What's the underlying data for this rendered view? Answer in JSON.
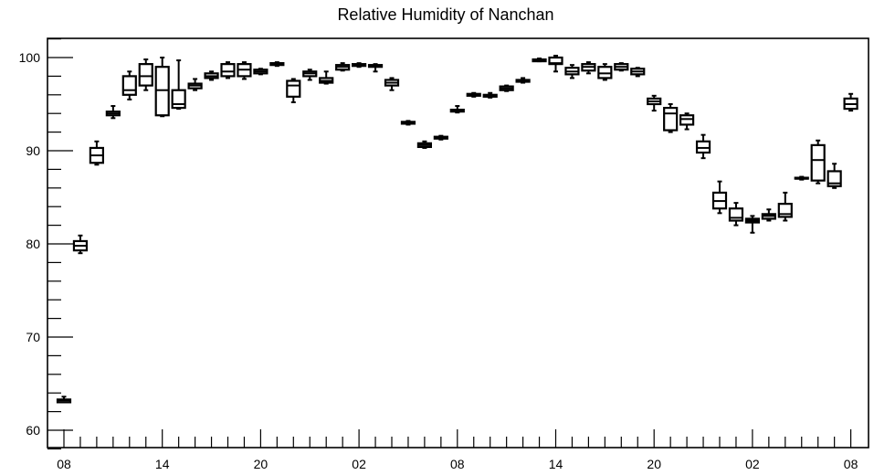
{
  "chart_data": {
    "type": "box",
    "title": "Relative Humidity of Nanchan",
    "xlabel": "",
    "ylabel": "",
    "ylim": [
      58,
      102
    ],
    "y_ticks": [
      60,
      70,
      80,
      90,
      100
    ],
    "y_minor_step": 2,
    "grid": false,
    "x_tick_labels": [
      "08",
      "14",
      "20",
      "02",
      "08",
      "14",
      "20",
      "02",
      "08"
    ],
    "x_tick_label_positions": [
      0,
      6,
      12,
      18,
      24,
      30,
      36,
      42,
      48
    ],
    "series": [
      {
        "boxes": [
          {
            "x": 0,
            "low": 63.0,
            "q1": 63.0,
            "median": 63.2,
            "q3": 63.3,
            "high": 63.6
          },
          {
            "x": 1,
            "low": 79.0,
            "q1": 79.3,
            "median": 79.8,
            "q3": 80.3,
            "high": 80.9
          },
          {
            "x": 2,
            "low": 88.5,
            "q1": 88.7,
            "median": 89.5,
            "q3": 90.3,
            "high": 91.0
          },
          {
            "x": 3,
            "low": 93.5,
            "q1": 93.8,
            "median": 94.0,
            "q3": 94.2,
            "high": 94.8
          },
          {
            "x": 4,
            "low": 95.5,
            "q1": 96.0,
            "median": 96.5,
            "q3": 98.0,
            "high": 98.5
          },
          {
            "x": 5,
            "low": 96.5,
            "q1": 97.0,
            "median": 98.0,
            "q3": 99.3,
            "high": 99.8
          },
          {
            "x": 6,
            "low": 93.7,
            "q1": 93.8,
            "median": 96.5,
            "q3": 99.0,
            "high": 100.0
          },
          {
            "x": 7,
            "low": 94.5,
            "q1": 94.6,
            "median": 95.0,
            "q3": 96.5,
            "high": 99.7
          },
          {
            "x": 8,
            "low": 96.5,
            "q1": 96.7,
            "median": 97.0,
            "q3": 97.2,
            "high": 97.7
          },
          {
            "x": 9,
            "low": 97.6,
            "q1": 97.8,
            "median": 98.0,
            "q3": 98.3,
            "high": 98.5
          },
          {
            "x": 10,
            "low": 97.8,
            "q1": 98.0,
            "median": 98.5,
            "q3": 99.3,
            "high": 99.5
          },
          {
            "x": 11,
            "low": 97.7,
            "q1": 98.0,
            "median": 98.7,
            "q3": 99.3,
            "high": 99.5
          },
          {
            "x": 12,
            "low": 98.2,
            "q1": 98.3,
            "median": 98.5,
            "q3": 98.7,
            "high": 98.8
          },
          {
            "x": 13,
            "low": 99.1,
            "q1": 99.2,
            "median": 99.3,
            "q3": 99.4,
            "high": 99.5
          },
          {
            "x": 14,
            "low": 95.2,
            "q1": 95.8,
            "median": 97.0,
            "q3": 97.5,
            "high": 97.7
          },
          {
            "x": 15,
            "low": 97.6,
            "q1": 98.0,
            "median": 98.3,
            "q3": 98.5,
            "high": 98.7
          },
          {
            "x": 16,
            "low": 97.2,
            "q1": 97.3,
            "median": 97.5,
            "q3": 97.8,
            "high": 98.5
          },
          {
            "x": 17,
            "low": 98.6,
            "q1": 98.7,
            "median": 99.0,
            "q3": 99.2,
            "high": 99.4
          },
          {
            "x": 18,
            "low": 99.0,
            "q1": 99.1,
            "median": 99.2,
            "q3": 99.3,
            "high": 99.4
          },
          {
            "x": 19,
            "low": 98.5,
            "q1": 99.0,
            "median": 99.1,
            "q3": 99.2,
            "high": 99.3
          },
          {
            "x": 20,
            "low": 96.5,
            "q1": 97.0,
            "median": 97.3,
            "q3": 97.6,
            "high": 97.8
          },
          {
            "x": 21,
            "low": 92.8,
            "q1": 92.9,
            "median": 93.0,
            "q3": 93.1,
            "high": 93.2
          },
          {
            "x": 22,
            "low": 90.3,
            "q1": 90.4,
            "median": 90.6,
            "q3": 90.8,
            "high": 91.0
          },
          {
            "x": 23,
            "low": 91.2,
            "q1": 91.3,
            "median": 91.4,
            "q3": 91.5,
            "high": 91.6
          },
          {
            "x": 24,
            "low": 94.1,
            "q1": 94.2,
            "median": 94.3,
            "q3": 94.4,
            "high": 94.8
          },
          {
            "x": 25,
            "low": 95.8,
            "q1": 95.9,
            "median": 96.0,
            "q3": 96.1,
            "high": 96.2
          },
          {
            "x": 26,
            "low": 95.7,
            "q1": 95.8,
            "median": 95.9,
            "q3": 96.0,
            "high": 96.2
          },
          {
            "x": 27,
            "low": 96.4,
            "q1": 96.5,
            "median": 96.7,
            "q3": 96.9,
            "high": 97.0
          },
          {
            "x": 28,
            "low": 97.3,
            "q1": 97.4,
            "median": 97.5,
            "q3": 97.6,
            "high": 97.8
          },
          {
            "x": 29,
            "low": 99.6,
            "q1": 99.6,
            "median": 99.7,
            "q3": 99.8,
            "high": 99.9
          },
          {
            "x": 30,
            "low": 98.5,
            "q1": 99.3,
            "median": 99.4,
            "q3": 100.0,
            "high": 100.2
          },
          {
            "x": 31,
            "low": 97.8,
            "q1": 98.2,
            "median": 98.5,
            "q3": 98.9,
            "high": 99.2
          },
          {
            "x": 32,
            "low": 98.3,
            "q1": 98.6,
            "median": 99.0,
            "q3": 99.3,
            "high": 99.5
          },
          {
            "x": 33,
            "low": 97.6,
            "q1": 97.8,
            "median": 98.3,
            "q3": 99.0,
            "high": 99.3
          },
          {
            "x": 34,
            "low": 98.6,
            "q1": 98.7,
            "median": 99.0,
            "q3": 99.3,
            "high": 99.4
          },
          {
            "x": 35,
            "low": 98.0,
            "q1": 98.2,
            "median": 98.5,
            "q3": 98.8,
            "high": 98.9
          },
          {
            "x": 36,
            "low": 94.3,
            "q1": 95.0,
            "median": 95.3,
            "q3": 95.6,
            "high": 95.9
          },
          {
            "x": 37,
            "low": 92.0,
            "q1": 92.2,
            "median": 94.0,
            "q3": 94.6,
            "high": 95.0
          },
          {
            "x": 38,
            "low": 92.3,
            "q1": 92.8,
            "median": 93.4,
            "q3": 93.8,
            "high": 94.0
          },
          {
            "x": 39,
            "low": 89.2,
            "q1": 89.8,
            "median": 90.3,
            "q3": 91.0,
            "high": 91.7
          },
          {
            "x": 40,
            "low": 83.3,
            "q1": 83.8,
            "median": 84.6,
            "q3": 85.5,
            "high": 86.7
          },
          {
            "x": 41,
            "low": 82.0,
            "q1": 82.5,
            "median": 82.8,
            "q3": 83.8,
            "high": 84.4
          },
          {
            "x": 42,
            "low": 81.2,
            "q1": 82.3,
            "median": 82.5,
            "q3": 82.7,
            "high": 83.0
          },
          {
            "x": 43,
            "low": 82.5,
            "q1": 82.7,
            "median": 83.0,
            "q3": 83.2,
            "high": 83.7
          },
          {
            "x": 44,
            "low": 82.5,
            "q1": 82.9,
            "median": 83.2,
            "q3": 84.3,
            "high": 85.5
          },
          {
            "x": 45,
            "low": 86.9,
            "q1": 87.0,
            "median": 87.0,
            "q3": 87.1,
            "high": 87.2
          },
          {
            "x": 46,
            "low": 86.5,
            "q1": 86.8,
            "median": 89.0,
            "q3": 90.6,
            "high": 91.1
          },
          {
            "x": 47,
            "low": 86.0,
            "q1": 86.2,
            "median": 86.5,
            "q3": 87.8,
            "high": 88.6
          },
          {
            "x": 48,
            "low": 94.3,
            "q1": 94.5,
            "median": 95.0,
            "q3": 95.6,
            "high": 96.1
          }
        ]
      }
    ]
  }
}
